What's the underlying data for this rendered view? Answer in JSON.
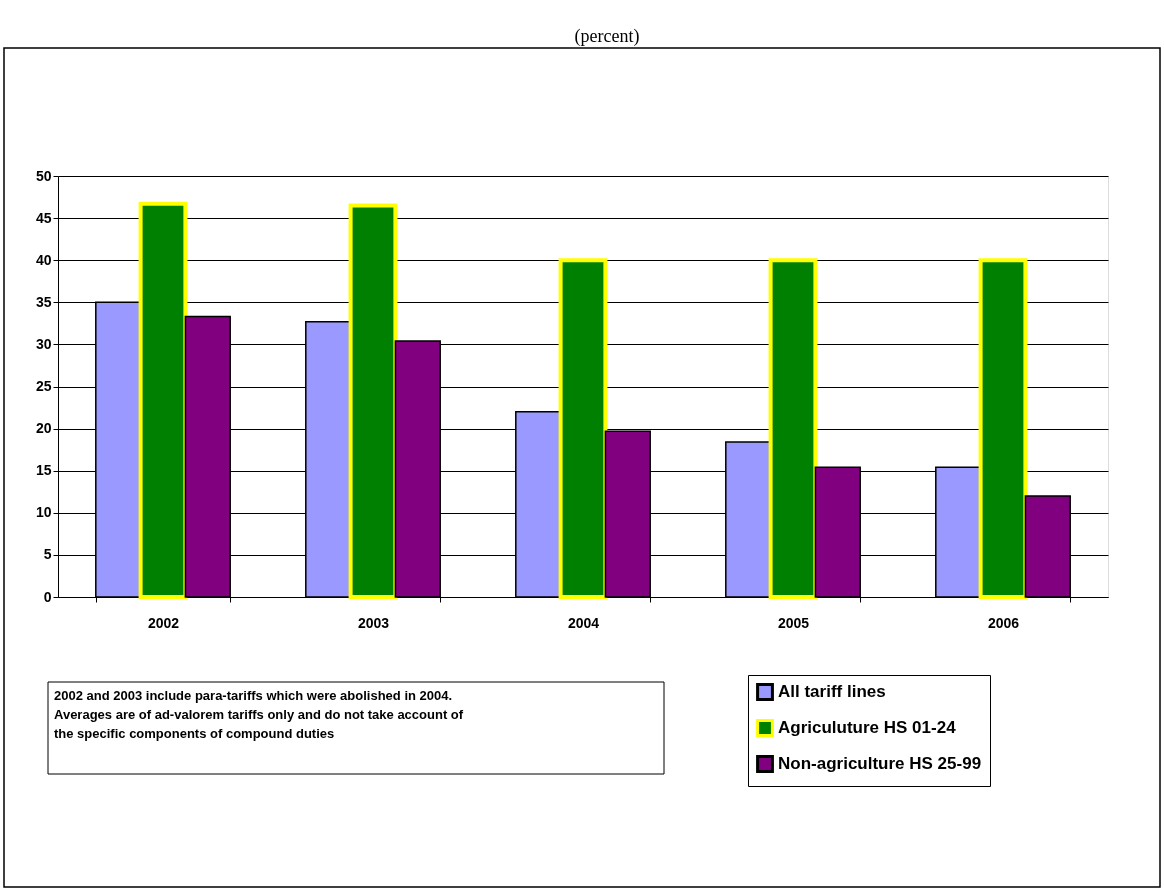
{
  "chart_data": {
    "type": "bar",
    "title": "(percent)",
    "categories": [
      "2002",
      "2003",
      "2004",
      "2005",
      "2006"
    ],
    "series": [
      {
        "name": "All tariff lines",
        "color": "#9999ff",
        "values": [
          35.0,
          32.7,
          22.0,
          18.4,
          15.4
        ]
      },
      {
        "name": "Agriculuture HS 01-24",
        "color": "#008000",
        "values": [
          46.7,
          46.5,
          40.0,
          40.0,
          40.0
        ]
      },
      {
        "name": "Non-agriculture HS 25-99",
        "color": "#800080",
        "values": [
          33.3,
          30.4,
          19.7,
          15.4,
          12.0
        ]
      }
    ],
    "ylim": [
      0,
      50
    ],
    "yticks": [
      0,
      5,
      10,
      15,
      20,
      25,
      30,
      35,
      40,
      45,
      50
    ],
    "grid": "y",
    "legend": "bottom right",
    "annotations": [
      "2002 and 2003 include para-tariffs which were abolished in 2004.\nAverages are of ad-valorem tariffs only and do not take account of\nthe specific components of compound duties"
    ]
  }
}
